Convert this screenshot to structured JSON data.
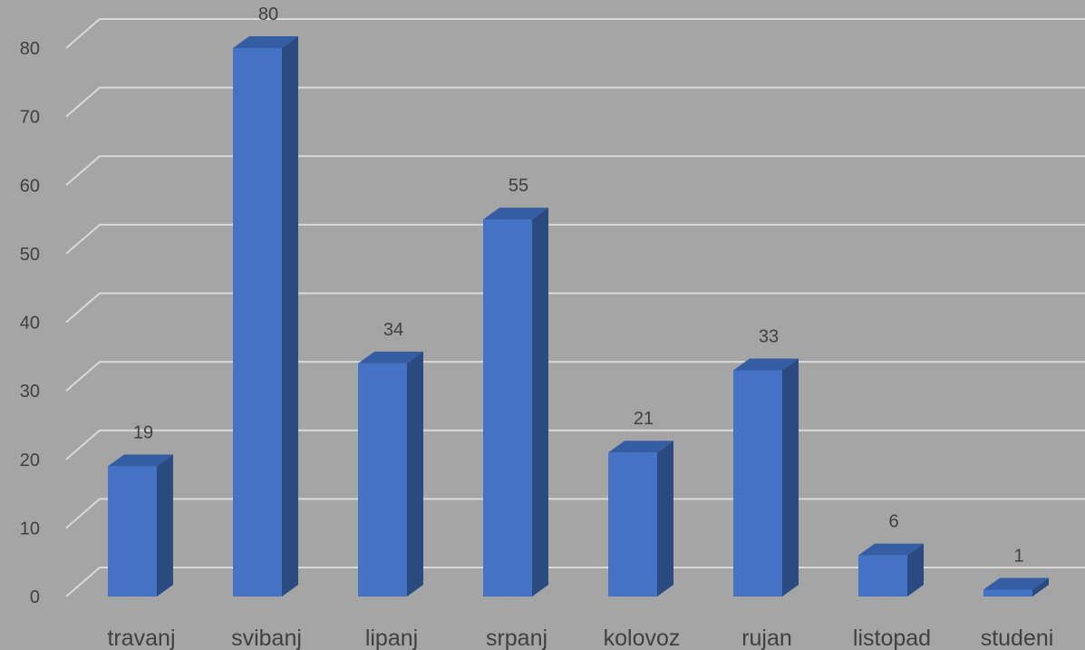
{
  "chart_data": {
    "type": "bar",
    "style": "3d-column",
    "categories": [
      "travanj",
      "svibanj",
      "lipanj",
      "srpanj",
      "kolovoz",
      "rujan",
      "listopad",
      "studeni"
    ],
    "values": [
      19,
      80,
      34,
      55,
      21,
      33,
      6,
      1
    ],
    "y_ticks": [
      0,
      10,
      20,
      30,
      40,
      50,
      60,
      70,
      80
    ],
    "ylim": [
      0,
      80
    ],
    "grid": true,
    "data_labels": true,
    "colors": {
      "background": "#a5a5a5",
      "bar_front": "#4472c4",
      "bar_side": "#2a4a80",
      "bar_top": "#355da3",
      "gridline": "#d9d9d9",
      "text": "#404040"
    }
  }
}
